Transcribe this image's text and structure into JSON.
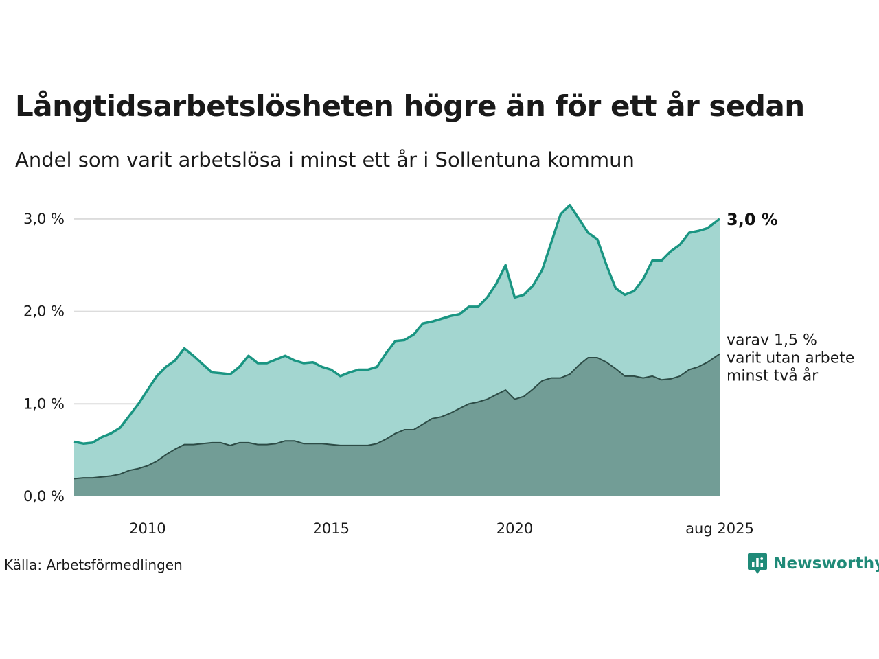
{
  "title": "Långtidsarbetslösheten högre än för ett år sedan",
  "subtitle": "Andel som varit arbetslösa i minst ett år i Sollentuna kommun",
  "source": "Källa: Arbetsförmedlingen",
  "brand": "Newsworthy",
  "colors": {
    "long_term_fill": "#a3d6d0",
    "long_term_line": "#1a9582",
    "very_long_term_fill": "#729d96",
    "very_long_term_line": "#2d4c46",
    "grid": "#dcdcdc",
    "brand": "#1f8a78"
  },
  "chart_data": {
    "type": "area",
    "ylim": [
      0,
      3.2
    ],
    "yticks": [
      {
        "value": 0,
        "label": "0,0 %"
      },
      {
        "value": 1,
        "label": "1,0 %"
      },
      {
        "value": 2,
        "label": "2,0 %"
      },
      {
        "value": 3,
        "label": "3,0 %"
      }
    ],
    "xlim": [
      "2008-01",
      "2025-08"
    ],
    "xticks": [
      {
        "value": "2010-01",
        "label": "2010"
      },
      {
        "value": "2015-01",
        "label": "2015"
      },
      {
        "value": "2020-01",
        "label": "2020"
      },
      {
        "value": "2025-08",
        "label": "aug 2025"
      }
    ],
    "grid": true,
    "end_labels": {
      "long_term": "3,0 %",
      "very_long_term": [
        "varav 1,5 %",
        "varit utan arbete",
        "minst två år"
      ]
    },
    "series": [
      {
        "key": "long_term",
        "points": [
          [
            "2008-01",
            0.59
          ],
          [
            "2008-04",
            0.57
          ],
          [
            "2008-07",
            0.58
          ],
          [
            "2008-10",
            0.64
          ],
          [
            "2009-01",
            0.68
          ],
          [
            "2009-04",
            0.74
          ],
          [
            "2009-07",
            0.87
          ],
          [
            "2009-10",
            1.0
          ],
          [
            "2010-01",
            1.15
          ],
          [
            "2010-04",
            1.3
          ],
          [
            "2010-07",
            1.4
          ],
          [
            "2010-10",
            1.47
          ],
          [
            "2011-01",
            1.6
          ],
          [
            "2011-04",
            1.52
          ],
          [
            "2011-07",
            1.43
          ],
          [
            "2011-10",
            1.34
          ],
          [
            "2012-01",
            1.33
          ],
          [
            "2012-04",
            1.32
          ],
          [
            "2012-07",
            1.4
          ],
          [
            "2012-10",
            1.52
          ],
          [
            "2013-01",
            1.44
          ],
          [
            "2013-04",
            1.44
          ],
          [
            "2013-07",
            1.48
          ],
          [
            "2013-10",
            1.52
          ],
          [
            "2014-01",
            1.47
          ],
          [
            "2014-04",
            1.44
          ],
          [
            "2014-07",
            1.45
          ],
          [
            "2014-10",
            1.4
          ],
          [
            "2015-01",
            1.37
          ],
          [
            "2015-04",
            1.3
          ],
          [
            "2015-07",
            1.34
          ],
          [
            "2015-10",
            1.37
          ],
          [
            "2016-01",
            1.37
          ],
          [
            "2016-04",
            1.4
          ],
          [
            "2016-07",
            1.55
          ],
          [
            "2016-10",
            1.68
          ],
          [
            "2017-01",
            1.69
          ],
          [
            "2017-04",
            1.75
          ],
          [
            "2017-07",
            1.87
          ],
          [
            "2017-10",
            1.89
          ],
          [
            "2018-01",
            1.92
          ],
          [
            "2018-04",
            1.95
          ],
          [
            "2018-07",
            1.97
          ],
          [
            "2018-10",
            2.05
          ],
          [
            "2019-01",
            2.05
          ],
          [
            "2019-04",
            2.15
          ],
          [
            "2019-07",
            2.3
          ],
          [
            "2019-10",
            2.5
          ],
          [
            "2020-01",
            2.15
          ],
          [
            "2020-04",
            2.18
          ],
          [
            "2020-07",
            2.28
          ],
          [
            "2020-10",
            2.45
          ],
          [
            "2021-01",
            2.75
          ],
          [
            "2021-04",
            3.05
          ],
          [
            "2021-07",
            3.15
          ],
          [
            "2021-10",
            3.0
          ],
          [
            "2022-01",
            2.85
          ],
          [
            "2022-04",
            2.78
          ],
          [
            "2022-07",
            2.5
          ],
          [
            "2022-10",
            2.25
          ],
          [
            "2023-01",
            2.18
          ],
          [
            "2023-04",
            2.22
          ],
          [
            "2023-07",
            2.35
          ],
          [
            "2023-10",
            2.55
          ],
          [
            "2024-01",
            2.55
          ],
          [
            "2024-04",
            2.65
          ],
          [
            "2024-07",
            2.72
          ],
          [
            "2024-10",
            2.85
          ],
          [
            "2025-01",
            2.87
          ],
          [
            "2025-04",
            2.9
          ],
          [
            "2025-08",
            3.0
          ]
        ]
      },
      {
        "key": "very_long_term",
        "points": [
          [
            "2008-01",
            0.19
          ],
          [
            "2008-04",
            0.2
          ],
          [
            "2008-07",
            0.2
          ],
          [
            "2008-10",
            0.21
          ],
          [
            "2009-01",
            0.22
          ],
          [
            "2009-04",
            0.24
          ],
          [
            "2009-07",
            0.28
          ],
          [
            "2009-10",
            0.3
          ],
          [
            "2010-01",
            0.33
          ],
          [
            "2010-04",
            0.38
          ],
          [
            "2010-07",
            0.45
          ],
          [
            "2010-10",
            0.51
          ],
          [
            "2011-01",
            0.56
          ],
          [
            "2011-04",
            0.56
          ],
          [
            "2011-07",
            0.57
          ],
          [
            "2011-10",
            0.58
          ],
          [
            "2012-01",
            0.58
          ],
          [
            "2012-04",
            0.55
          ],
          [
            "2012-07",
            0.58
          ],
          [
            "2012-10",
            0.58
          ],
          [
            "2013-01",
            0.56
          ],
          [
            "2013-04",
            0.56
          ],
          [
            "2013-07",
            0.57
          ],
          [
            "2013-10",
            0.6
          ],
          [
            "2014-01",
            0.6
          ],
          [
            "2014-04",
            0.57
          ],
          [
            "2014-07",
            0.57
          ],
          [
            "2014-10",
            0.57
          ],
          [
            "2015-01",
            0.56
          ],
          [
            "2015-04",
            0.55
          ],
          [
            "2015-07",
            0.55
          ],
          [
            "2015-10",
            0.55
          ],
          [
            "2016-01",
            0.55
          ],
          [
            "2016-04",
            0.57
          ],
          [
            "2016-07",
            0.62
          ],
          [
            "2016-10",
            0.68
          ],
          [
            "2017-01",
            0.72
          ],
          [
            "2017-04",
            0.72
          ],
          [
            "2017-07",
            0.78
          ],
          [
            "2017-10",
            0.84
          ],
          [
            "2018-01",
            0.86
          ],
          [
            "2018-04",
            0.9
          ],
          [
            "2018-07",
            0.95
          ],
          [
            "2018-10",
            1.0
          ],
          [
            "2019-01",
            1.02
          ],
          [
            "2019-04",
            1.05
          ],
          [
            "2019-07",
            1.1
          ],
          [
            "2019-10",
            1.15
          ],
          [
            "2020-01",
            1.05
          ],
          [
            "2020-04",
            1.08
          ],
          [
            "2020-07",
            1.16
          ],
          [
            "2020-10",
            1.25
          ],
          [
            "2021-01",
            1.28
          ],
          [
            "2021-04",
            1.28
          ],
          [
            "2021-07",
            1.32
          ],
          [
            "2021-10",
            1.42
          ],
          [
            "2022-01",
            1.5
          ],
          [
            "2022-04",
            1.5
          ],
          [
            "2022-07",
            1.45
          ],
          [
            "2022-10",
            1.38
          ],
          [
            "2023-01",
            1.3
          ],
          [
            "2023-04",
            1.3
          ],
          [
            "2023-07",
            1.28
          ],
          [
            "2023-10",
            1.3
          ],
          [
            "2024-01",
            1.26
          ],
          [
            "2024-04",
            1.27
          ],
          [
            "2024-07",
            1.3
          ],
          [
            "2024-10",
            1.37
          ],
          [
            "2025-01",
            1.4
          ],
          [
            "2025-04",
            1.45
          ],
          [
            "2025-08",
            1.54
          ]
        ]
      }
    ]
  }
}
